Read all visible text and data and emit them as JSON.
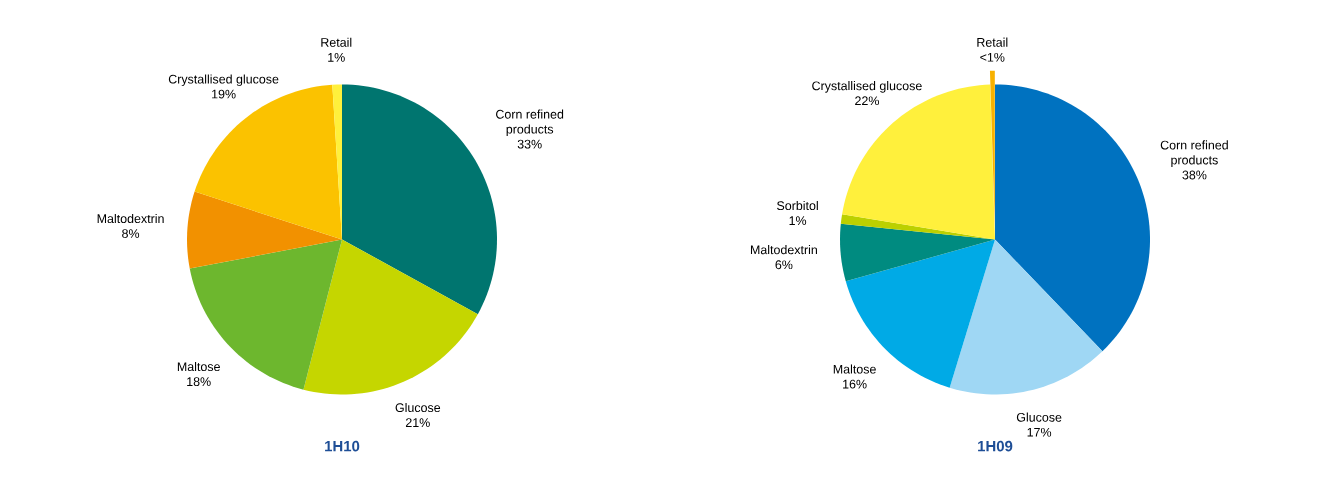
{
  "chart_data": [
    {
      "type": "pie",
      "title": "1H10",
      "categories": [
        "Corn refined products",
        "Glucose",
        "Maltose",
        "Maltodextrin",
        "Crystallised glucose",
        "Retail"
      ],
      "values": [
        33,
        21,
        18,
        8,
        19,
        1
      ],
      "value_labels": [
        "33%",
        "21%",
        "18%",
        "8%",
        "19%",
        "1%"
      ],
      "colors": [
        "#00756f",
        "#c5d600",
        "#6db72e",
        "#f29100",
        "#fbc200",
        "#fff03c"
      ]
    },
    {
      "type": "pie",
      "title": "1H09",
      "categories": [
        "Corn refined products",
        "Glucose",
        "Maltose",
        "Maltodextrin",
        "Sorbitol",
        "Crystallised glucose",
        "Retail"
      ],
      "values": [
        38,
        17,
        16,
        6,
        1,
        22,
        0.5
      ],
      "value_labels": [
        "38%",
        "17%",
        "16%",
        "6%",
        "1%",
        "22%",
        "<1%"
      ],
      "colors": [
        "#0072c0",
        "#9fd7f4",
        "#00aae6",
        "#008b80",
        "#bcd000",
        "#fff03c",
        "#f7b100"
      ]
    }
  ]
}
